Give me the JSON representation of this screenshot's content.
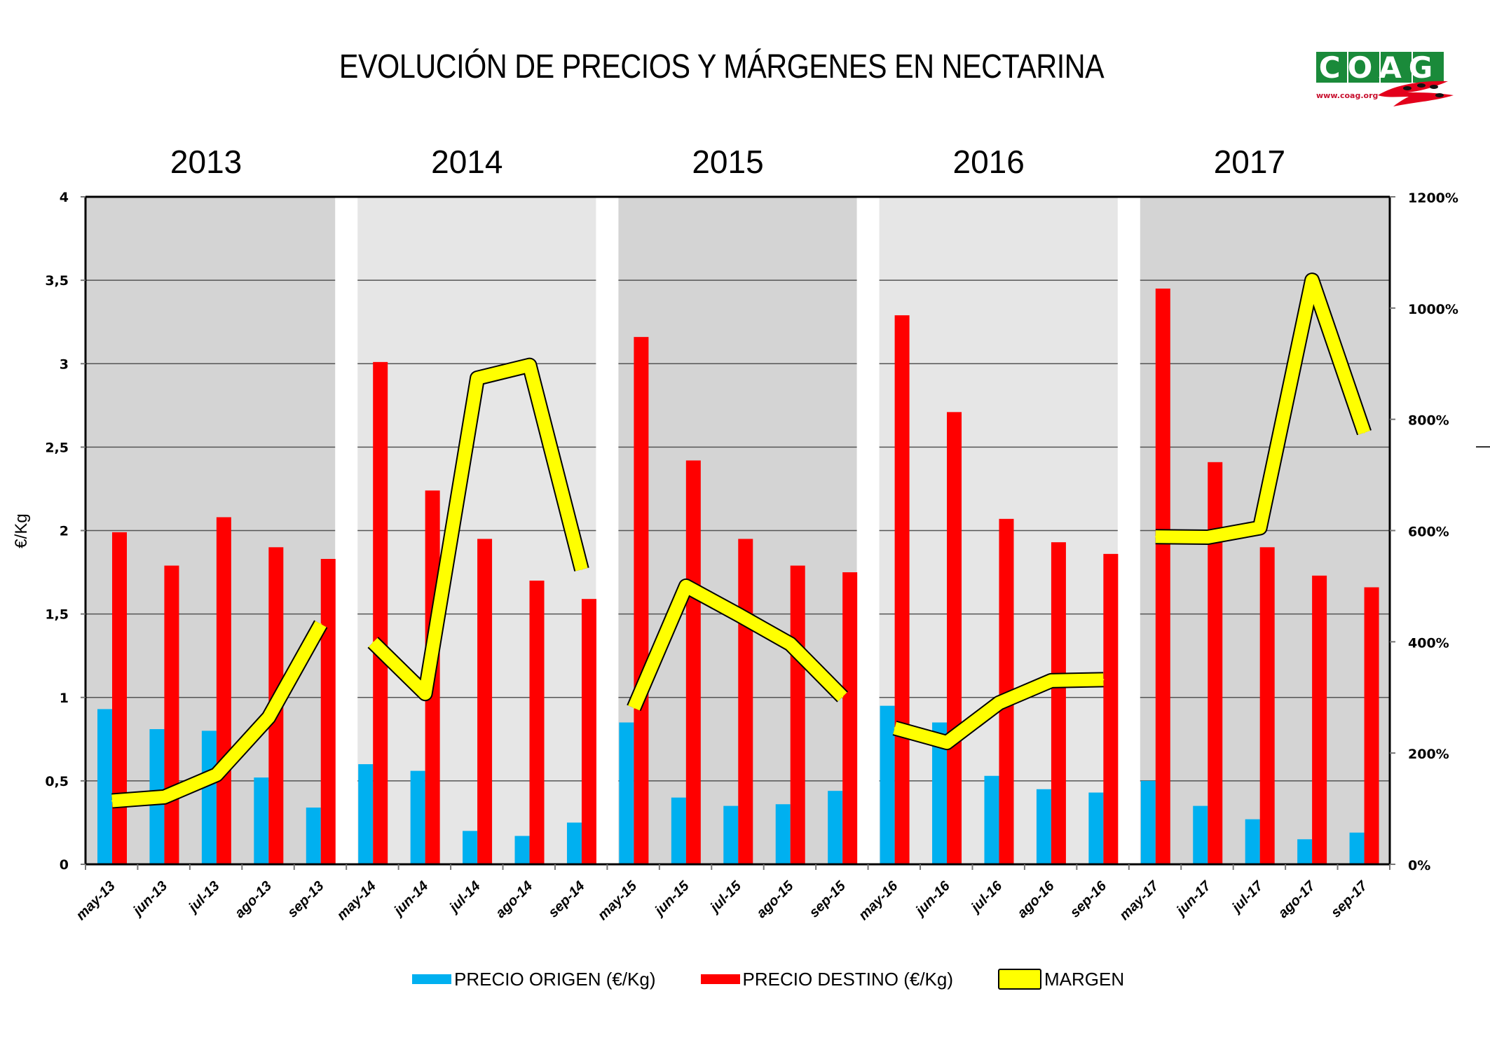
{
  "page": {
    "title": "EVOLUCIÓN DE PRECIOS Y MÁRGENES EN NECTARINA",
    "logo": {
      "text": "COAG",
      "url_text": "www.coag.org",
      "brand_green": "#1a8a3a",
      "brand_red": "#e3001b"
    }
  },
  "chart_data": {
    "type": "bar",
    "title": "EVOLUCIÓN DE PRECIOS Y MÁRGENES EN NECTARINA",
    "xlabel": "",
    "ylabel": "€/Kg",
    "ylabel_right": "",
    "ylim": [
      0,
      4
    ],
    "y_ticks": [
      "0",
      "0,5",
      "1",
      "1,5",
      "2",
      "2,5",
      "3",
      "3,5",
      "4"
    ],
    "y_tick_values": [
      0,
      0.5,
      1,
      1.5,
      2,
      2.5,
      3,
      3.5,
      4
    ],
    "ylim_right": [
      0,
      12
    ],
    "y_right_ticks": [
      "0%",
      "200%",
      "400%",
      "600%",
      "800%",
      "1000%",
      "1200%"
    ],
    "y_right_tick_values": [
      0,
      2,
      4,
      6,
      8,
      10,
      12
    ],
    "grid": true,
    "legend_position": "bottom",
    "year_groups": [
      {
        "label": "2013",
        "shade": "dark"
      },
      {
        "label": "2014",
        "shade": "light"
      },
      {
        "label": "2015",
        "shade": "dark"
      },
      {
        "label": "2016",
        "shade": "light"
      },
      {
        "label": "2017",
        "shade": "dark"
      }
    ],
    "categories": [
      "may-13",
      "jun-13",
      "jul-13",
      "ago-13",
      "sep-13",
      "may-14",
      "jun-14",
      "jul-14",
      "ago-14",
      "sep-14",
      "may-15",
      "jun-15",
      "jul-15",
      "ago-15",
      "sep-15",
      "may-16",
      "jun-16",
      "jul-16",
      "ago-16",
      "sep-16",
      "may-17",
      "jun-17",
      "jul-17",
      "ago-17",
      "sep-17"
    ],
    "series": [
      {
        "name": "PRECIO ORIGEN (€/Kg)",
        "type": "bar",
        "axis": "left",
        "color": "#00b0f0",
        "values": [
          0.93,
          0.81,
          0.8,
          0.52,
          0.34,
          0.6,
          0.56,
          0.2,
          0.17,
          0.25,
          0.85,
          0.4,
          0.35,
          0.36,
          0.44,
          0.95,
          0.85,
          0.53,
          0.45,
          0.43,
          0.5,
          0.35,
          0.27,
          0.15,
          0.19
        ]
      },
      {
        "name": "PRECIO DESTINO (€/Kg)",
        "type": "bar",
        "axis": "left",
        "color": "#ff0000",
        "values": [
          1.99,
          1.79,
          2.08,
          1.9,
          1.83,
          3.01,
          2.24,
          1.95,
          1.7,
          1.59,
          3.16,
          2.42,
          1.95,
          1.79,
          1.75,
          3.29,
          2.71,
          2.07,
          1.93,
          1.86,
          3.45,
          2.41,
          1.9,
          1.73,
          1.66
        ]
      },
      {
        "name": "MARGEN",
        "type": "line",
        "axis": "right",
        "unit": "%",
        "color": "#ffff00",
        "segments_by_year": true,
        "values": [
          114,
          121,
          161,
          264,
          432,
          399,
          307,
          874,
          897,
          530,
          281,
          500,
          449,
          396,
          301,
          245,
          219,
          290,
          330,
          332,
          589,
          588,
          605,
          1050,
          776
        ]
      }
    ]
  },
  "legend": {
    "items": [
      {
        "label": "PRECIO ORIGEN (€/Kg)",
        "color": "#00b0f0",
        "kind": "bar"
      },
      {
        "label": "PRECIO DESTINO (€/Kg)",
        "color": "#ff0000",
        "kind": "bar"
      },
      {
        "label": "MARGEN",
        "color": "#ffff00",
        "kind": "line"
      }
    ]
  },
  "colors": {
    "panel_dark": "#d4d4d4",
    "panel_light": "#e6e6e6",
    "gridline": "#555555"
  }
}
